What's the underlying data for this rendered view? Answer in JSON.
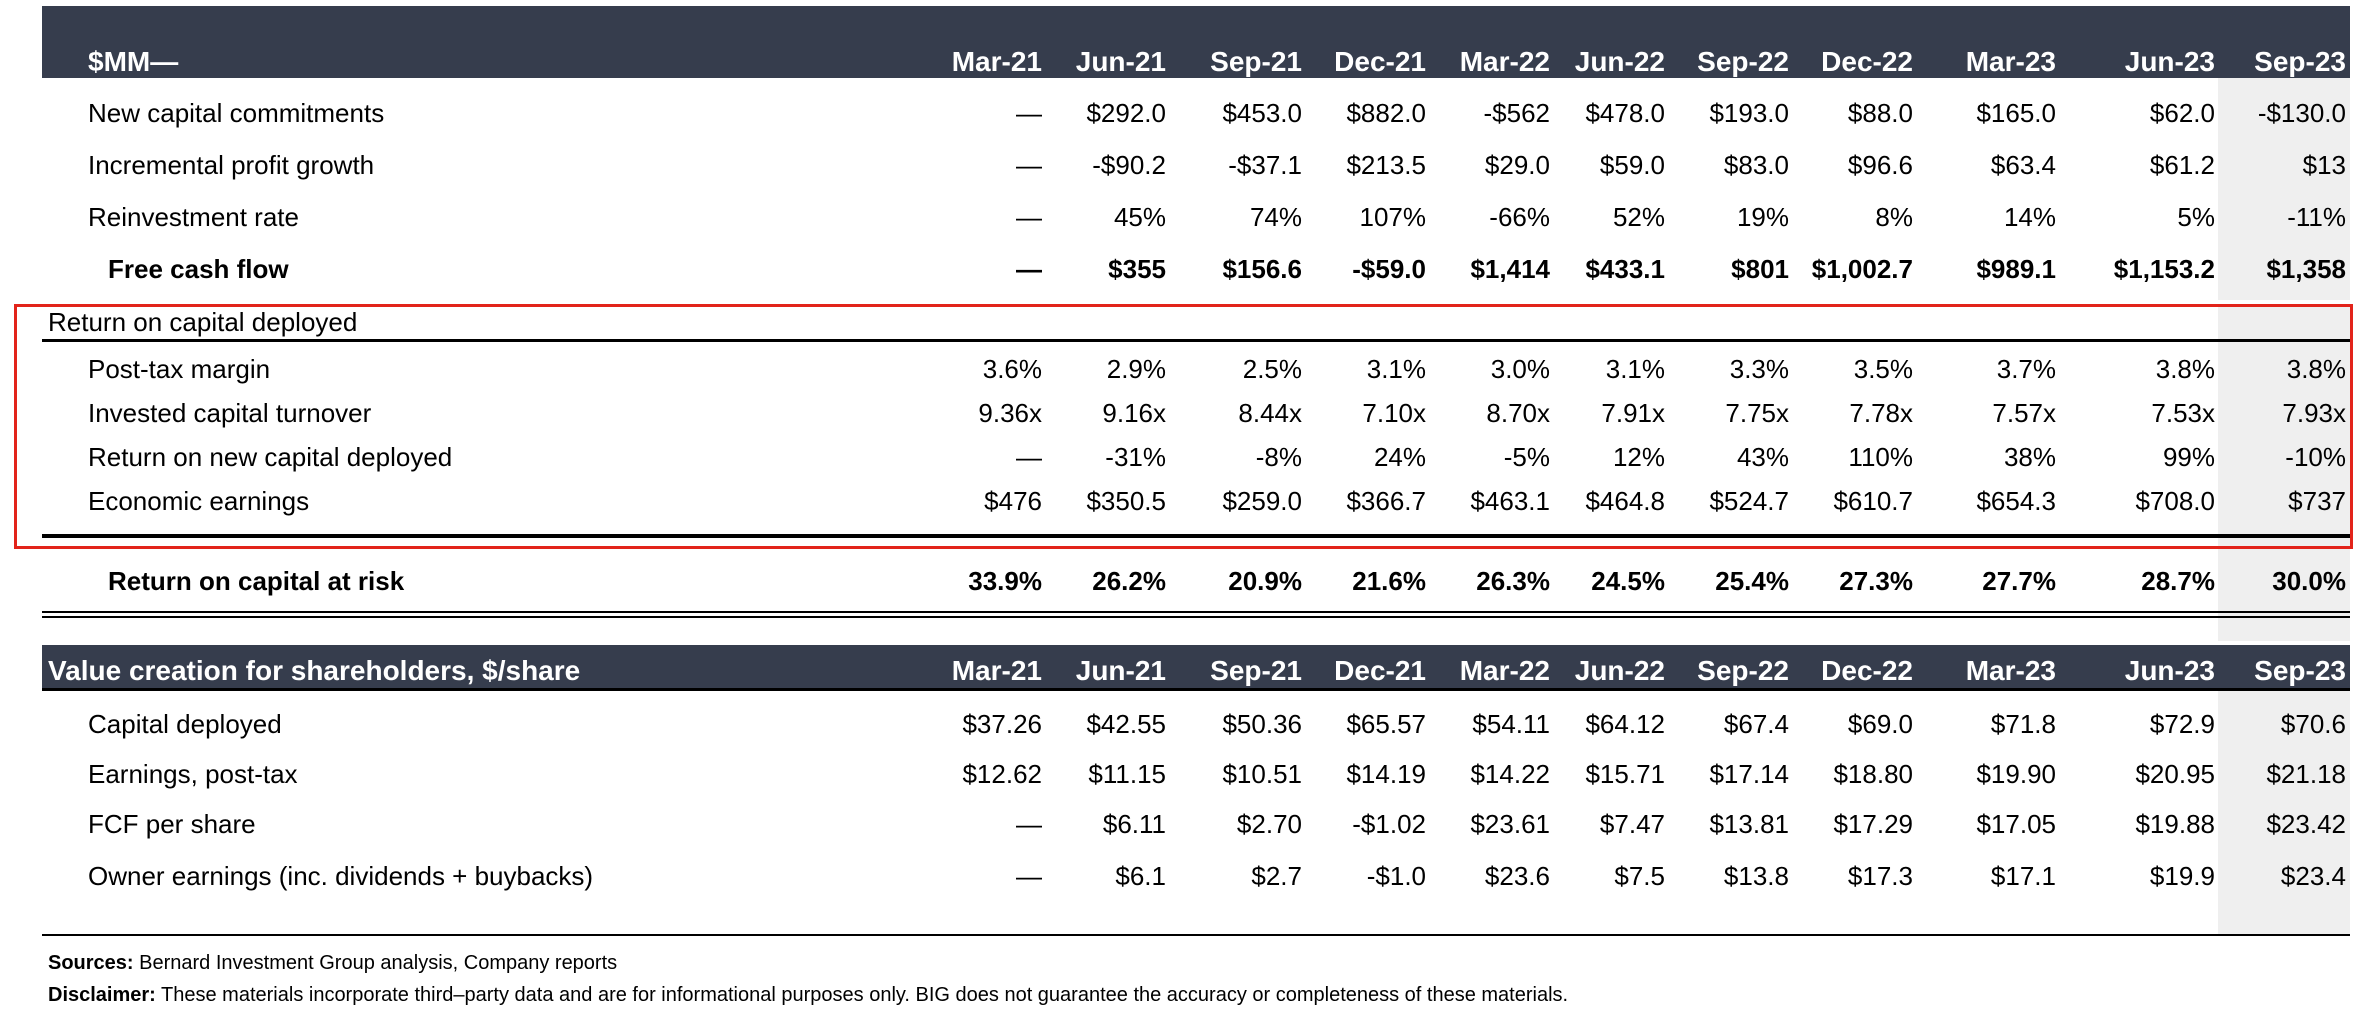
{
  "columns": [
    "Mar-21",
    "Jun-21",
    "Sep-21",
    "Dec-21",
    "Mar-22",
    "Jun-22",
    "Sep-22",
    "Dec-22",
    "Mar-23",
    "Jun-23",
    "Sep-23"
  ],
  "section1": {
    "title": "$MM—",
    "rows": [
      {
        "label": "New capital commitments",
        "values": [
          "—",
          "$292.0",
          "$453.0",
          "$882.0",
          "-$562",
          "$478.0",
          "$193.0",
          "$88.0",
          "$165.0",
          "$62.0",
          "-$130.0"
        ]
      },
      {
        "label": "Incremental profit growth",
        "values": [
          "—",
          "-$90.2",
          "-$37.1",
          "$213.5",
          "$29.0",
          "$59.0",
          "$83.0",
          "$96.6",
          "$63.4",
          "$61.2",
          "$13"
        ]
      },
      {
        "label": "Reinvestment rate",
        "values": [
          "—",
          "45%",
          "74%",
          "107%",
          "-66%",
          "52%",
          "19%",
          "8%",
          "14%",
          "5%",
          "-11%"
        ]
      },
      {
        "label": "Free cash flow",
        "values": [
          "—",
          "$355",
          "$156.6",
          "-$59.0",
          "$1,414",
          "$433.1",
          "$801",
          "$1,002.7",
          "$989.1",
          "$1,153.2",
          "$1,358"
        ]
      }
    ]
  },
  "section2": {
    "title": "Return on capital deployed",
    "rows": [
      {
        "label": "Post-tax margin",
        "values": [
          "3.6%",
          "2.9%",
          "2.5%",
          "3.1%",
          "3.0%",
          "3.1%",
          "3.3%",
          "3.5%",
          "3.7%",
          "3.8%",
          "3.8%"
        ]
      },
      {
        "label": "Invested capital turnover",
        "values": [
          "9.36x",
          "9.16x",
          "8.44x",
          "7.10x",
          "8.70x",
          "7.91x",
          "7.75x",
          "7.78x",
          "7.57x",
          "7.53x",
          "7.93x"
        ]
      },
      {
        "label": "Return on new capital deployed",
        "values": [
          "—",
          "-31%",
          "-8%",
          "24%",
          "-5%",
          "12%",
          "43%",
          "110%",
          "38%",
          "99%",
          "-10%"
        ]
      },
      {
        "label": "Economic earnings",
        "values": [
          "$476",
          "$350.5",
          "$259.0",
          "$366.7",
          "$463.1",
          "$464.8",
          "$524.7",
          "$610.7",
          "$654.3",
          "$708.0",
          "$737"
        ]
      }
    ],
    "total": {
      "label": "Return on capital at risk",
      "values": [
        "33.9%",
        "26.2%",
        "20.9%",
        "21.6%",
        "26.3%",
        "24.5%",
        "25.4%",
        "27.3%",
        "27.7%",
        "28.7%",
        "30.0%"
      ]
    }
  },
  "section3": {
    "title": "Value creation for shareholders, $/share",
    "rows": [
      {
        "label": "Capital deployed",
        "values": [
          "$37.26",
          "$42.55",
          "$50.36",
          "$65.57",
          "$54.11",
          "$64.12",
          "$67.4",
          "$69.0",
          "$71.8",
          "$72.9",
          "$70.6"
        ]
      },
      {
        "label": "Earnings, post-tax",
        "values": [
          "$12.62",
          "$11.15",
          "$10.51",
          "$14.19",
          "$14.22",
          "$15.71",
          "$17.14",
          "$18.80",
          "$19.90",
          "$20.95",
          "$21.18"
        ]
      },
      {
        "label": "FCF per share",
        "values": [
          "—",
          "$6.11",
          "$2.70",
          "-$1.02",
          "$23.61",
          "$7.47",
          "$13.81",
          "$17.29",
          "$17.05",
          "$19.88",
          "$23.42"
        ]
      },
      {
        "label": "Owner earnings (inc. dividends + buybacks)",
        "values": [
          "—",
          "$6.1",
          "$2.7",
          "-$1.0",
          "$23.6",
          "$7.5",
          "$13.8",
          "$17.3",
          "$17.1",
          "$19.9",
          "$23.4"
        ]
      }
    ]
  },
  "footer": {
    "sources_label": "Sources:",
    "sources_text": " Bernard Investment Group analysis, Company reports",
    "disclaimer_label": "Disclaimer:",
    "disclaimer_text": " These materials incorporate third–party data and are for informational purposes only. BIG does not guarantee the accuracy or completeness of these materials."
  }
}
